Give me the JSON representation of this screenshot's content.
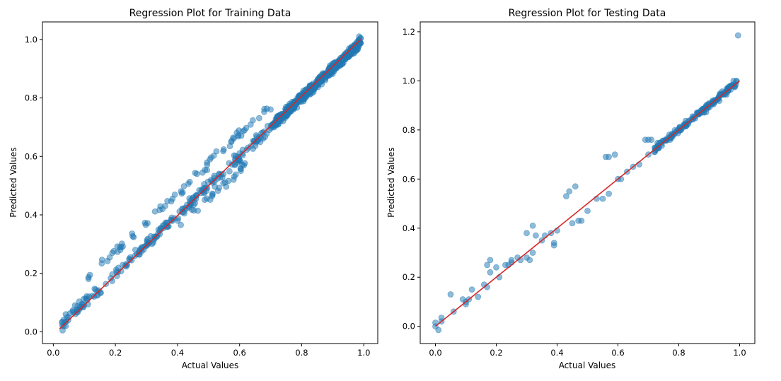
{
  "chart_data": [
    {
      "type": "scatter",
      "title": "Regression Plot for Training Data",
      "xlabel": "Actual Values",
      "ylabel": "Predicted Values",
      "xlim": [
        -0.035,
        1.045
      ],
      "ylim": [
        -0.04,
        1.06
      ],
      "xticks": [
        "0.0",
        "0.2",
        "0.4",
        "0.6",
        "0.8",
        "1.0"
      ],
      "yticks": [
        "0.0",
        "0.2",
        "0.4",
        "0.6",
        "0.8",
        "1.0"
      ],
      "grid": false,
      "point_color": "#1f77b4",
      "line_color": "#d62728",
      "fit_line": [
        [
          0.02,
          0.01
        ],
        [
          0.99,
          1.0
        ]
      ],
      "clusters": [
        {
          "from": 0.02,
          "to": 0.7,
          "n": 220,
          "offset": 0.0,
          "spread": 0.012
        },
        {
          "from": 0.1,
          "to": 0.72,
          "n": 70,
          "offset": 0.075,
          "spread": 0.01
        },
        {
          "from": 0.4,
          "to": 0.62,
          "n": 25,
          "offset": -0.045,
          "spread": 0.01
        },
        {
          "from": 0.7,
          "to": 0.99,
          "n": 500,
          "offset": 0.0,
          "spread": 0.01
        }
      ],
      "extra_points": [
        [
          0.03,
          0.005
        ],
        [
          0.04,
          0.02
        ],
        [
          0.985,
          1.01
        ],
        [
          0.99,
          1.005
        ]
      ]
    },
    {
      "type": "scatter",
      "title": "Regression Plot for Testing Data",
      "xlabel": "Actual Values",
      "ylabel": "Predicted Values",
      "xlim": [
        -0.05,
        1.05
      ],
      "ylim": [
        -0.07,
        1.24
      ],
      "xticks": [
        "0.0",
        "0.2",
        "0.4",
        "0.6",
        "0.8",
        "1.0"
      ],
      "yticks": [
        "0.0",
        "0.2",
        "0.4",
        "0.6",
        "0.8",
        "1.0",
        "1.2"
      ],
      "grid": false,
      "point_color": "#1f77b4",
      "line_color": "#d62728",
      "fit_line": [
        [
          0.0,
          0.0
        ],
        [
          1.0,
          1.0
        ]
      ],
      "clusters": [
        {
          "from": 0.72,
          "to": 0.99,
          "n": 160,
          "offset": 0.0,
          "spread": 0.008
        }
      ],
      "extra_points": [
        [
          0.0,
          0.0
        ],
        [
          0.0,
          0.015
        ],
        [
          0.01,
          -0.015
        ],
        [
          0.02,
          0.02
        ],
        [
          0.02,
          0.035
        ],
        [
          0.05,
          0.13
        ],
        [
          0.06,
          0.06
        ],
        [
          0.09,
          0.11
        ],
        [
          0.1,
          0.1
        ],
        [
          0.1,
          0.09
        ],
        [
          0.11,
          0.11
        ],
        [
          0.12,
          0.15
        ],
        [
          0.14,
          0.12
        ],
        [
          0.16,
          0.17
        ],
        [
          0.17,
          0.25
        ],
        [
          0.17,
          0.16
        ],
        [
          0.18,
          0.22
        ],
        [
          0.18,
          0.27
        ],
        [
          0.2,
          0.24
        ],
        [
          0.21,
          0.2
        ],
        [
          0.23,
          0.25
        ],
        [
          0.24,
          0.25
        ],
        [
          0.25,
          0.26
        ],
        [
          0.25,
          0.27
        ],
        [
          0.27,
          0.28
        ],
        [
          0.28,
          0.27
        ],
        [
          0.3,
          0.38
        ],
        [
          0.3,
          0.28
        ],
        [
          0.31,
          0.27
        ],
        [
          0.32,
          0.3
        ],
        [
          0.32,
          0.41
        ],
        [
          0.33,
          0.37
        ],
        [
          0.35,
          0.35
        ],
        [
          0.36,
          0.37
        ],
        [
          0.38,
          0.38
        ],
        [
          0.39,
          0.33
        ],
        [
          0.39,
          0.34
        ],
        [
          0.4,
          0.39
        ],
        [
          0.43,
          0.53
        ],
        [
          0.44,
          0.55
        ],
        [
          0.45,
          0.42
        ],
        [
          0.46,
          0.57
        ],
        [
          0.47,
          0.43
        ],
        [
          0.48,
          0.43
        ],
        [
          0.5,
          0.47
        ],
        [
          0.53,
          0.52
        ],
        [
          0.55,
          0.52
        ],
        [
          0.56,
          0.69
        ],
        [
          0.57,
          0.69
        ],
        [
          0.57,
          0.54
        ],
        [
          0.59,
          0.7
        ],
        [
          0.6,
          0.6
        ],
        [
          0.61,
          0.6
        ],
        [
          0.63,
          0.63
        ],
        [
          0.65,
          0.65
        ],
        [
          0.67,
          0.66
        ],
        [
          0.69,
          0.76
        ],
        [
          0.7,
          0.76
        ],
        [
          0.7,
          0.7
        ],
        [
          0.71,
          0.76
        ],
        [
          0.72,
          0.71
        ],
        [
          0.995,
          1.185
        ],
        [
          0.98,
          1.0
        ],
        [
          0.99,
          1.0
        ]
      ]
    }
  ]
}
